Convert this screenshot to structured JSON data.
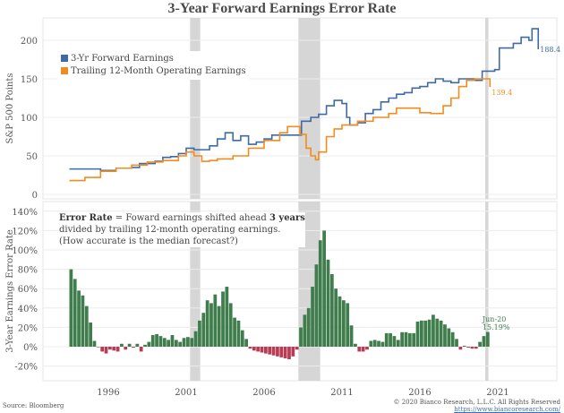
{
  "title": "3-Year Forward Earnings Error Rate",
  "footer": {
    "source": "Source: Bloomberg",
    "copyright": "© 2020 Bianco Research, L.L.C. All Rights Reserved",
    "url": "https://www.biancoresearch.com/"
  },
  "colors": {
    "forward": "#3f6aa6",
    "trailing": "#f28c1e",
    "positive": "#3f7d4c",
    "negative": "#b83a55",
    "recession": "#d6d6d6"
  },
  "chart_data": [
    {
      "type": "line",
      "title": "3-Year Forward Earnings Error Rate",
      "ylabel": "S&P 500 Points",
      "ylim": [
        0,
        220
      ],
      "yticks": [
        "0",
        "50",
        "100",
        "150",
        "200"
      ],
      "xlim": [
        1992,
        2025
      ],
      "grid": true,
      "legend": "top-left",
      "recessions": [
        [
          2001.25,
          2001.9
        ],
        [
          2008.2,
          2009.6
        ],
        [
          2020.2,
          2020.4
        ]
      ],
      "series": [
        {
          "name": "3-Yr Forward Earnings",
          "end_label": "188.4",
          "x": [
            1993.5,
            1995,
            1995.5,
            1996.5,
            1997.5,
            1998,
            1999,
            1999.5,
            2000,
            2000.5,
            2001,
            2001.5,
            2002,
            2002.5,
            2003,
            2003.5,
            2004,
            2004.5,
            2005,
            2005.5,
            2006,
            2006.5,
            2008.2,
            2008.4,
            2009,
            2009.5,
            2010,
            2010.5,
            2011,
            2011.3,
            2011.5,
            2012,
            2012.5,
            2013,
            2013.5,
            2014,
            2014.5,
            2015,
            2015.5,
            2016,
            2016.5,
            2017,
            2017.5,
            2018,
            2018.5,
            2019,
            2019.5,
            2020,
            2020.8,
            2021.1,
            2022,
            2022.5,
            2023,
            2023.2,
            2023.6
          ],
          "y": [
            33,
            33,
            31,
            34,
            35,
            40,
            43,
            48,
            49,
            53,
            60,
            58,
            58,
            63,
            72,
            80,
            70,
            76,
            65,
            68,
            72,
            77,
            77,
            95,
            100,
            104,
            115,
            122,
            118,
            100,
            90,
            93,
            105,
            110,
            120,
            125,
            130,
            132,
            138,
            140,
            145,
            150,
            147,
            145,
            150,
            150,
            148,
            160,
            162,
            190,
            196,
            204,
            200,
            215,
            188.4
          ]
        },
        {
          "name": "Trailing 12-Month Operating Earnings",
          "end_label": "139.4",
          "x": [
            1993.5,
            1994.5,
            1995.5,
            1996.5,
            1997.5,
            1998.5,
            1999.5,
            2000.5,
            2001,
            2001.5,
            2002,
            2002.5,
            2003,
            2004,
            2005,
            2006,
            2007,
            2007.5,
            2008,
            2008.3,
            2008.7,
            2009,
            2009.3,
            2009.5,
            2010,
            2010.5,
            2011,
            2012,
            2013,
            2014,
            2014.5,
            2015.5,
            2016,
            2016.7,
            2017.5,
            2018,
            2018.5,
            2019,
            2019.5,
            2020.2,
            2020.5
          ],
          "y": [
            18,
            22,
            30,
            34,
            38,
            42,
            44,
            50,
            55,
            50,
            43,
            44,
            46,
            50,
            60,
            70,
            80,
            88,
            88,
            78,
            60,
            50,
            45,
            55,
            75,
            85,
            90,
            95,
            100,
            105,
            112,
            112,
            106,
            105,
            115,
            125,
            140,
            148,
            150,
            150,
            139.4
          ]
        }
      ]
    },
    {
      "type": "bar",
      "ylabel": "3-Year Earnings Error Rate",
      "ylim": [
        -30,
        145
      ],
      "yticks": [
        "-20%",
        "0%",
        "20%",
        "40%",
        "60%",
        "80%",
        "100%",
        "120%",
        "140%"
      ],
      "xticks": [
        "1996",
        "2001",
        "2006",
        "2011",
        "2016",
        "2021"
      ],
      "xlim": [
        1992,
        2025
      ],
      "annotation": {
        "label_bold": "Error Rate",
        "eq": " = Foward earnings shifted ahead ",
        "bold2": "3 years",
        "line2": "divided by trailing 12-month operating earnings.",
        "line3": "(How accurate is the median forecast?)"
      },
      "last_label": {
        "date": "Jun-20",
        "value": "15.19%"
      },
      "x": [
        1993.5,
        1993.75,
        1994,
        1994.25,
        1994.5,
        1994.75,
        1995,
        1995.25,
        1995.5,
        1995.75,
        1996,
        1996.25,
        1996.5,
        1996.75,
        1997,
        1997.25,
        1997.5,
        1997.75,
        1998,
        1998.25,
        1998.5,
        1998.75,
        1999,
        1999.25,
        1999.5,
        1999.75,
        2000,
        2000.25,
        2000.5,
        2000.75,
        2001,
        2001.25,
        2001.5,
        2001.75,
        2002,
        2002.25,
        2002.5,
        2002.75,
        2003,
        2003.25,
        2003.5,
        2003.75,
        2004,
        2004.25,
        2004.5,
        2004.75,
        2005,
        2005.25,
        2005.5,
        2005.75,
        2006,
        2006.25,
        2006.5,
        2006.75,
        2007,
        2007.25,
        2007.5,
        2007.75,
        2008,
        2008.25,
        2008.5,
        2008.75,
        2009,
        2009.25,
        2009.5,
        2009.75,
        2010,
        2010.25,
        2010.5,
        2010.75,
        2011,
        2011.25,
        2011.5,
        2011.75,
        2012,
        2012.25,
        2012.5,
        2012.75,
        2013,
        2013.25,
        2013.5,
        2013.75,
        2014,
        2014.25,
        2014.5,
        2014.75,
        2015,
        2015.25,
        2015.5,
        2015.75,
        2016,
        2016.25,
        2016.5,
        2016.75,
        2017,
        2017.25,
        2017.5,
        2017.75,
        2018,
        2018.25,
        2018.5,
        2018.75,
        2019,
        2019.25,
        2019.5,
        2019.75,
        2020,
        2020.25
      ],
      "values": [
        80,
        70,
        58,
        53,
        42,
        25,
        6,
        0,
        -5,
        -7,
        -3,
        -4,
        -5,
        3,
        -3,
        3,
        -1,
        3,
        -5,
        2,
        5,
        12,
        13,
        11,
        9,
        7,
        12,
        7,
        5,
        9,
        10,
        9,
        16,
        27,
        35,
        48,
        45,
        54,
        42,
        57,
        62,
        45,
        30,
        27,
        17,
        8,
        -2,
        -4,
        -5,
        -6,
        -7,
        -8,
        -9,
        -10,
        -11,
        -12,
        -13,
        -10,
        -3,
        20,
        33,
        40,
        62,
        85,
        110,
        120,
        90,
        75,
        60,
        52,
        48,
        45,
        22,
        3,
        -5,
        -5,
        -3,
        6,
        7,
        6,
        5,
        14,
        14,
        11,
        7,
        15,
        15,
        14,
        14,
        26,
        27,
        27,
        28,
        33,
        29,
        27,
        23,
        19,
        15,
        8,
        -3,
        1,
        -1,
        -2,
        -2,
        5,
        11,
        15.19
      ]
    }
  ]
}
